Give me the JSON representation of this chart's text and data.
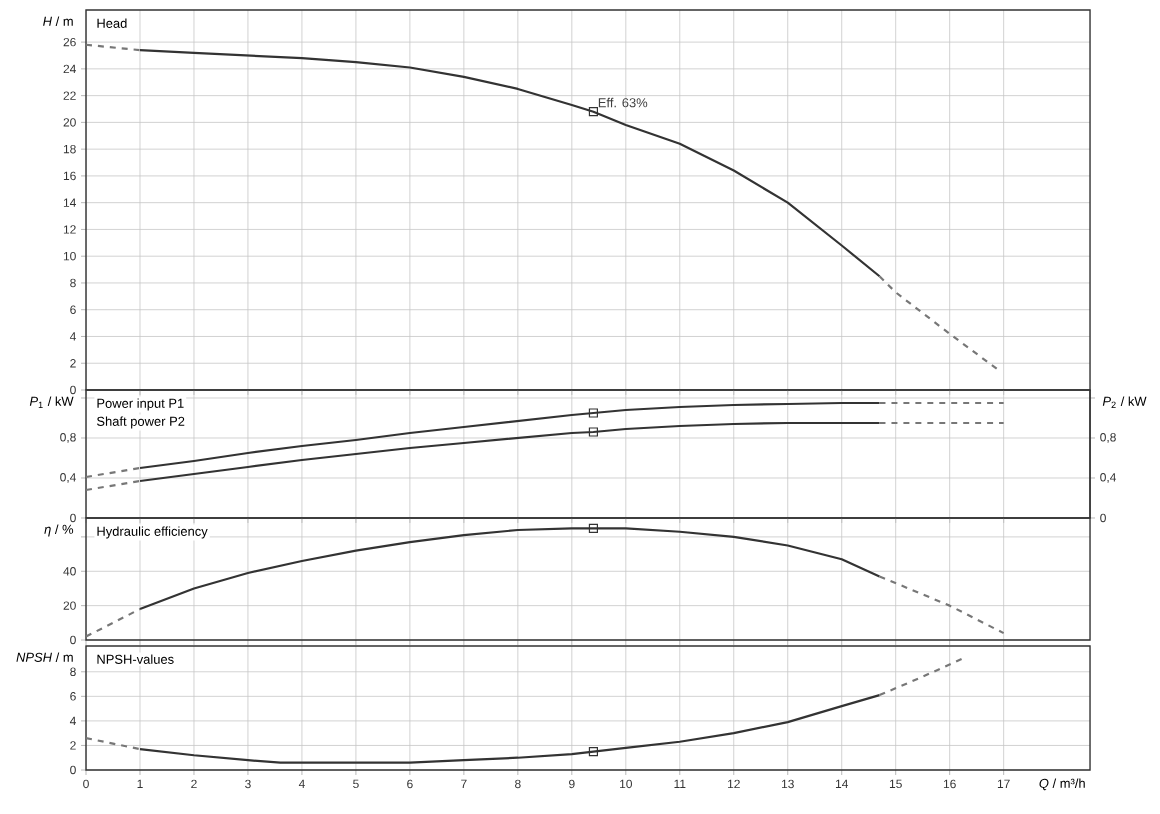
{
  "chart_data": [
    {
      "type": "line",
      "ylabel": "*H* / m",
      "xlim": [
        0,
        18.6
      ],
      "ylim": [
        0,
        28.4
      ],
      "xticks": [
        0,
        1,
        2,
        3,
        4,
        5,
        6,
        7,
        8,
        9,
        10,
        11,
        12,
        13,
        14,
        15,
        16,
        17
      ],
      "yticks": [
        0,
        2,
        4,
        6,
        8,
        10,
        12,
        14,
        16,
        18,
        20,
        22,
        24,
        26
      ],
      "grid": true,
      "tick_labels": "y",
      "annotations": [
        "Head",
        {
          "text": "Eff. 63%",
          "x": 9.4,
          "y": 20.8
        }
      ],
      "series": [
        {
          "color": "#333333",
          "line_style": "solid",
          "x": [
            1,
            2,
            3,
            4,
            5,
            6,
            7,
            8,
            9,
            9.4,
            10,
            11,
            12,
            13,
            14,
            14.7
          ],
          "values": [
            25.4,
            25.2,
            25.0,
            24.8,
            24.5,
            24.1,
            23.4,
            22.5,
            21.3,
            20.8,
            19.8,
            18.4,
            16.4,
            14.0,
            10.8,
            8.5
          ]
        },
        {
          "color": "#777777",
          "line_style": "dashed",
          "x": [
            0,
            1
          ],
          "values": [
            25.8,
            25.4
          ]
        },
        {
          "color": "#777777",
          "line_style": "dashed",
          "x": [
            14.7,
            15,
            16,
            16.9
          ],
          "values": [
            8.5,
            7.3,
            4.2,
            1.5
          ]
        },
        {
          "type": "scatter",
          "color": "#333333",
          "marker": "square",
          "x": [
            9.4
          ],
          "values": [
            20.8
          ]
        }
      ]
    },
    {
      "type": "line",
      "ylabel": "*P*$_{1}$ / kW",
      "y2label": "*P*$_{2}$ / kW",
      "xlim": [
        0,
        18.6
      ],
      "ylim": [
        0,
        1.28
      ],
      "y2lim": [
        0,
        1.28
      ],
      "xticks": [
        0,
        1,
        2,
        3,
        4,
        5,
        6,
        7,
        8,
        9,
        10,
        11,
        12,
        13,
        14,
        15,
        16,
        17
      ],
      "yticks": [
        0,
        {
          "value": 0.4,
          "label": "0,4"
        },
        {
          "value": 0.8,
          "label": "0,8"
        },
        {
          "value": 1.2,
          "label": null
        }
      ],
      "y2ticks": [
        0,
        {
          "value": 0.4,
          "label": "0,4"
        },
        {
          "value": 0.8,
          "label": "0,8"
        },
        {
          "value": 1.2,
          "label": null
        }
      ],
      "grid": true,
      "tick_labels": "y",
      "annotations": [
        "Power input P1",
        "Shaft power P2"
      ],
      "series": [
        {
          "color": "#333333",
          "line_style": "solid",
          "x": [
            1,
            2,
            3,
            4,
            5,
            6,
            7,
            8,
            9,
            9.4,
            10,
            11,
            12,
            13,
            14,
            14.7
          ],
          "values": [
            0.5,
            0.57,
            0.65,
            0.72,
            0.78,
            0.85,
            0.91,
            0.97,
            1.03,
            1.05,
            1.08,
            1.11,
            1.13,
            1.14,
            1.15,
            1.15
          ]
        },
        {
          "color": "#333333",
          "line_style": "solid",
          "x": [
            1,
            2,
            3,
            4,
            5,
            6,
            7,
            8,
            9,
            9.4,
            10,
            11,
            12,
            13,
            14,
            14.7
          ],
          "values": [
            0.37,
            0.44,
            0.51,
            0.58,
            0.64,
            0.7,
            0.75,
            0.8,
            0.85,
            0.86,
            0.89,
            0.92,
            0.94,
            0.95,
            0.95,
            0.95
          ]
        },
        {
          "color": "#777777",
          "line_style": "dashed",
          "x": [
            0,
            1
          ],
          "values": [
            0.41,
            0.5
          ]
        },
        {
          "color": "#777777",
          "line_style": "dashed",
          "x": [
            0,
            1
          ],
          "values": [
            0.28,
            0.37
          ]
        },
        {
          "color": "#777777",
          "line_style": "dashed",
          "x": [
            14.7,
            17
          ],
          "values": [
            1.15,
            1.15
          ]
        },
        {
          "color": "#777777",
          "line_style": "dashed",
          "x": [
            14.7,
            17
          ],
          "values": [
            0.95,
            0.95
          ]
        },
        {
          "type": "scatter",
          "color": "#333333",
          "marker": "square",
          "x": [
            9.4,
            9.4
          ],
          "values": [
            1.05,
            0.86
          ]
        }
      ]
    },
    {
      "type": "line",
      "ylabel": "*η* / %",
      "xlim": [
        0,
        18.6
      ],
      "ylim": [
        0,
        71
      ],
      "xticks": [
        0,
        1,
        2,
        3,
        4,
        5,
        6,
        7,
        8,
        9,
        10,
        11,
        12,
        13,
        14,
        15,
        16,
        17
      ],
      "yticks": [
        0,
        20,
        40,
        {
          "value": 60,
          "label": null
        }
      ],
      "grid": true,
      "tick_labels": "y",
      "annotations": [
        "Hydraulic efficiency"
      ],
      "series": [
        {
          "color": "#333333",
          "line_style": "solid",
          "x": [
            1,
            2,
            3,
            4,
            5,
            6,
            7,
            8,
            9,
            9.4,
            10,
            11,
            12,
            13,
            14,
            14.7
          ],
          "values": [
            18,
            30,
            39,
            46,
            52,
            57,
            61,
            64,
            65,
            65,
            65,
            63,
            60,
            55,
            47,
            37
          ]
        },
        {
          "color": "#777777",
          "line_style": "dashed",
          "x": [
            0,
            1
          ],
          "values": [
            2,
            18
          ]
        },
        {
          "color": "#777777",
          "line_style": "dashed",
          "x": [
            14.7,
            16,
            17
          ],
          "values": [
            37,
            20,
            4
          ]
        },
        {
          "type": "scatter",
          "color": "#333333",
          "marker": "square",
          "x": [
            9.4
          ],
          "values": [
            65
          ]
        }
      ]
    },
    {
      "type": "line",
      "ylabel": "*NPSH* / m",
      "xlabel": "*Q* / m³/h",
      "xlim": [
        0,
        18.6
      ],
      "ylim": [
        0,
        10.1
      ],
      "xticks": [
        0,
        1,
        2,
        3,
        4,
        5,
        6,
        7,
        8,
        9,
        10,
        11,
        12,
        13,
        14,
        15,
        16,
        17
      ],
      "yticks": [
        0,
        2,
        4,
        6,
        8
      ],
      "grid": true,
      "annotations": [
        "NPSH-values"
      ],
      "series": [
        {
          "color": "#333333",
          "line_style": "solid",
          "x": [
            1,
            2,
            3,
            3.6,
            4,
            5,
            6,
            7,
            8,
            9,
            9.4,
            10,
            11,
            12,
            13,
            14,
            14.7
          ],
          "values": [
            1.7,
            1.2,
            0.8,
            0.6,
            0.6,
            0.6,
            0.6,
            0.8,
            1.0,
            1.3,
            1.5,
            1.8,
            2.3,
            3.0,
            3.9,
            5.2,
            6.1
          ]
        },
        {
          "color": "#777777",
          "line_style": "dashed",
          "x": [
            0,
            1
          ],
          "values": [
            2.6,
            1.7
          ]
        },
        {
          "color": "#777777",
          "line_style": "dashed",
          "x": [
            14.7,
            15.5,
            16.3
          ],
          "values": [
            6.1,
            7.6,
            9.2
          ]
        },
        {
          "type": "scatter",
          "color": "#333333",
          "marker": "square",
          "x": [
            9.4
          ],
          "values": [
            1.5
          ]
        }
      ]
    }
  ]
}
